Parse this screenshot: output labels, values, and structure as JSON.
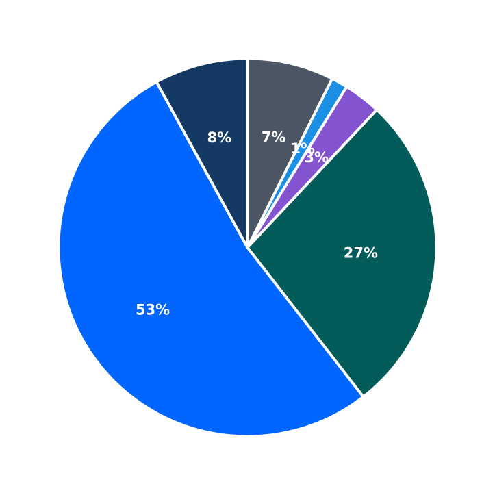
{
  "chart_data": {
    "type": "pie",
    "title": "",
    "start_angle_deg": 90,
    "direction": "clockwise",
    "slices": [
      {
        "label": "7%",
        "value": 7.4,
        "color": "#4b5563"
      },
      {
        "label": "1%",
        "value": 1.4,
        "color": "#1a8fe3"
      },
      {
        "label": "3%",
        "value": 3.2,
        "color": "#8454d0"
      },
      {
        "label": "27%",
        "value": 27.5,
        "color": "#045c5a"
      },
      {
        "label": "53%",
        "value": 52.5,
        "color": "#0066ff"
      },
      {
        "label": "8%",
        "value": 8.0,
        "color": "#143963"
      }
    ]
  }
}
